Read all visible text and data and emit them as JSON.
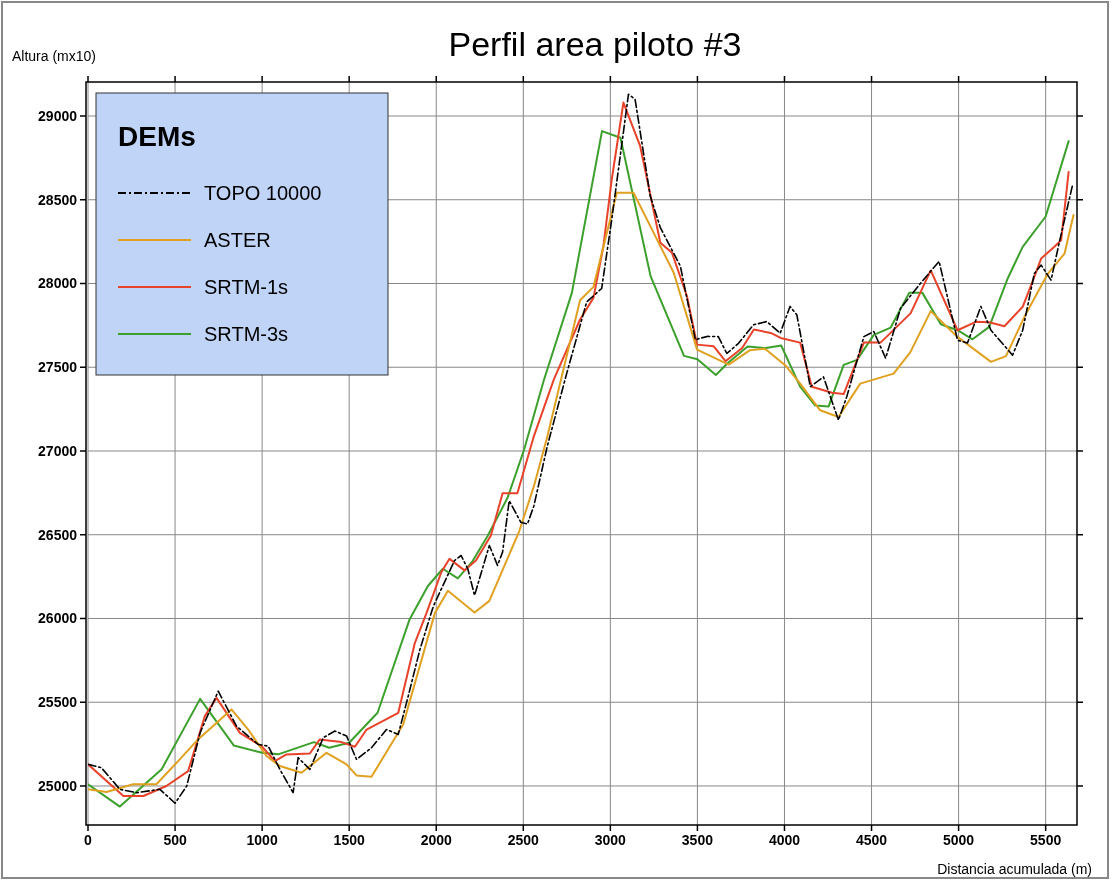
{
  "chart_data": {
    "type": "line",
    "title": "Perfil area piloto #3",
    "xlabel": "Distancia acumulada (m)",
    "ylabel": "Altura (mx10)",
    "legend_title": "DEMs",
    "legend": "top left",
    "grid": true,
    "xlim": [
      0,
      5680
    ],
    "ylim": [
      24767,
      29203
    ],
    "xticks": [
      0,
      500,
      1000,
      1500,
      2000,
      2500,
      3000,
      3500,
      4000,
      4500,
      5000,
      5500
    ],
    "yticks": [
      25000,
      25500,
      26000,
      26500,
      27000,
      27500,
      28000,
      28500,
      29000
    ],
    "series": [
      {
        "name": "TOPO 10000",
        "color": "#000000",
        "line_style": "dashed",
        "x": [
          0,
          77,
          183,
          279,
          413,
          500,
          567,
          644,
          748,
          853,
          977,
          1035,
          1102,
          1178,
          1207,
          1274,
          1351,
          1418,
          1485,
          1542,
          1628,
          1714,
          1782,
          1839,
          1906,
          1983,
          2105,
          2143,
          2181,
          2220,
          2305,
          2352,
          2381,
          2419,
          2486,
          2524,
          2561,
          2638,
          2749,
          2864,
          2950,
          3008,
          3104,
          3142,
          3229,
          3287,
          3402,
          3488,
          3556,
          3620,
          3669,
          3736,
          3822,
          3898,
          3975,
          4032,
          4071,
          4148,
          4224,
          4310,
          4358,
          4456,
          4513,
          4581,
          4667,
          4782,
          4888,
          4994,
          5051,
          5128,
          5186,
          5310,
          5368,
          5435,
          5474,
          5531,
          5579,
          5655
        ],
        "values": [
          25129,
          25109,
          24980,
          24960,
          24980,
          24897,
          25000,
          25318,
          25566,
          25357,
          25248,
          25238,
          25099,
          24960,
          25169,
          25099,
          25288,
          25328,
          25298,
          25159,
          25228,
          25337,
          25308,
          25536,
          25814,
          26072,
          26346,
          26376,
          26297,
          26138,
          26436,
          26317,
          26396,
          26703,
          26574,
          26564,
          26673,
          27030,
          27462,
          27890,
          27970,
          28382,
          29130,
          29100,
          28522,
          28334,
          28104,
          27665,
          27684,
          27683,
          27582,
          27643,
          27753,
          27773,
          27703,
          27863,
          27813,
          27384,
          27442,
          27185,
          27325,
          27683,
          27713,
          27554,
          27853,
          28002,
          28132,
          27661,
          27645,
          27863,
          27721,
          27572,
          27721,
          28060,
          28110,
          28020,
          28249,
          28590
        ]
      },
      {
        "name": "ASTER",
        "color": "#e0a020",
        "line_style": "solid",
        "x": [
          0,
          106,
          259,
          393,
          527,
          632,
          824,
          920,
          1025,
          1102,
          1226,
          1370,
          1485,
          1542,
          1628,
          1810,
          1992,
          2067,
          2220,
          2305,
          2477,
          2561,
          2638,
          2826,
          2903,
          3037,
          3133,
          3287,
          3364,
          3498,
          3680,
          3802,
          3888,
          4004,
          4090,
          4205,
          4310,
          4435,
          4627,
          4723,
          4840,
          4994,
          5186,
          5272,
          5378,
          5512,
          5608,
          5660
        ],
        "values": [
          24980,
          24964,
          25010,
          25010,
          25159,
          25278,
          25457,
          25337,
          25179,
          25119,
          25079,
          25198,
          25129,
          25063,
          25055,
          25367,
          26032,
          26165,
          26036,
          26105,
          26522,
          26790,
          27087,
          27900,
          27980,
          28542,
          28542,
          28223,
          28064,
          27605,
          27516,
          27602,
          27611,
          27512,
          27402,
          27243,
          27203,
          27402,
          27462,
          27590,
          27835,
          27681,
          27532,
          27566,
          27801,
          28058,
          28178,
          28409
        ]
      },
      {
        "name": "SRTM-1s",
        "color": "#e8432a",
        "line_style": "solid",
        "x": [
          0,
          203,
          318,
          450,
          575,
          671,
          738,
          872,
          997,
          1073,
          1140,
          1274,
          1331,
          1456,
          1533,
          1600,
          1782,
          1877,
          1944,
          2029,
          2076,
          2162,
          2228,
          2314,
          2381,
          2466,
          2561,
          2675,
          2826,
          2903,
          2960,
          3008,
          3075,
          3171,
          3287,
          3354,
          3440,
          3498,
          3594,
          3661,
          3757,
          3824,
          3921,
          3978,
          4090,
          4157,
          4273,
          4340,
          4456,
          4552,
          4725,
          4840,
          4994,
          5099,
          5176,
          5263,
          5368,
          5435,
          5474,
          5550,
          5589,
          5632
        ],
        "values": [
          25129,
          24940,
          24940,
          25000,
          25089,
          25417,
          25526,
          25317,
          25238,
          25149,
          25188,
          25194,
          25278,
          25262,
          25234,
          25337,
          25437,
          25853,
          26032,
          26276,
          26356,
          26287,
          26346,
          26495,
          26748,
          26748,
          27089,
          27426,
          27785,
          27914,
          28223,
          28621,
          29080,
          28821,
          28243,
          28183,
          27924,
          27635,
          27625,
          27536,
          27615,
          27725,
          27705,
          27675,
          27647,
          27384,
          27348,
          27340,
          27647,
          27647,
          27823,
          28078,
          27721,
          27771,
          27769,
          27745,
          27861,
          28040,
          28149,
          28219,
          28259,
          28666
        ]
      },
      {
        "name": "SRTM-3s",
        "color": "#3ca02c",
        "line_style": "solid",
        "x": [
          0,
          183,
          423,
          644,
          837,
          1000,
          1096,
          1298,
          1385,
          1500,
          1663,
          1846,
          1952,
          2038,
          2124,
          2209,
          2295,
          2409,
          2504,
          2618,
          2779,
          2952,
          3058,
          3231,
          3423,
          3500,
          3606,
          3673,
          3788,
          3885,
          3981,
          4090,
          4177,
          4253,
          4340,
          4417,
          4513,
          4610,
          4716,
          4792,
          4898,
          4994,
          5080,
          5176,
          5282,
          5368,
          5500,
          5632
        ],
        "values": [
          25010,
          24877,
          25100,
          25520,
          25242,
          25198,
          25190,
          25262,
          25228,
          25258,
          25437,
          25992,
          26194,
          26297,
          26240,
          26343,
          26492,
          26719,
          27006,
          27422,
          27944,
          28910,
          28870,
          28044,
          27568,
          27548,
          27454,
          27524,
          27624,
          27614,
          27630,
          27384,
          27271,
          27265,
          27514,
          27544,
          27693,
          27737,
          27944,
          27944,
          27757,
          27721,
          27667,
          27741,
          28030,
          28219,
          28400,
          28850
        ]
      }
    ]
  }
}
